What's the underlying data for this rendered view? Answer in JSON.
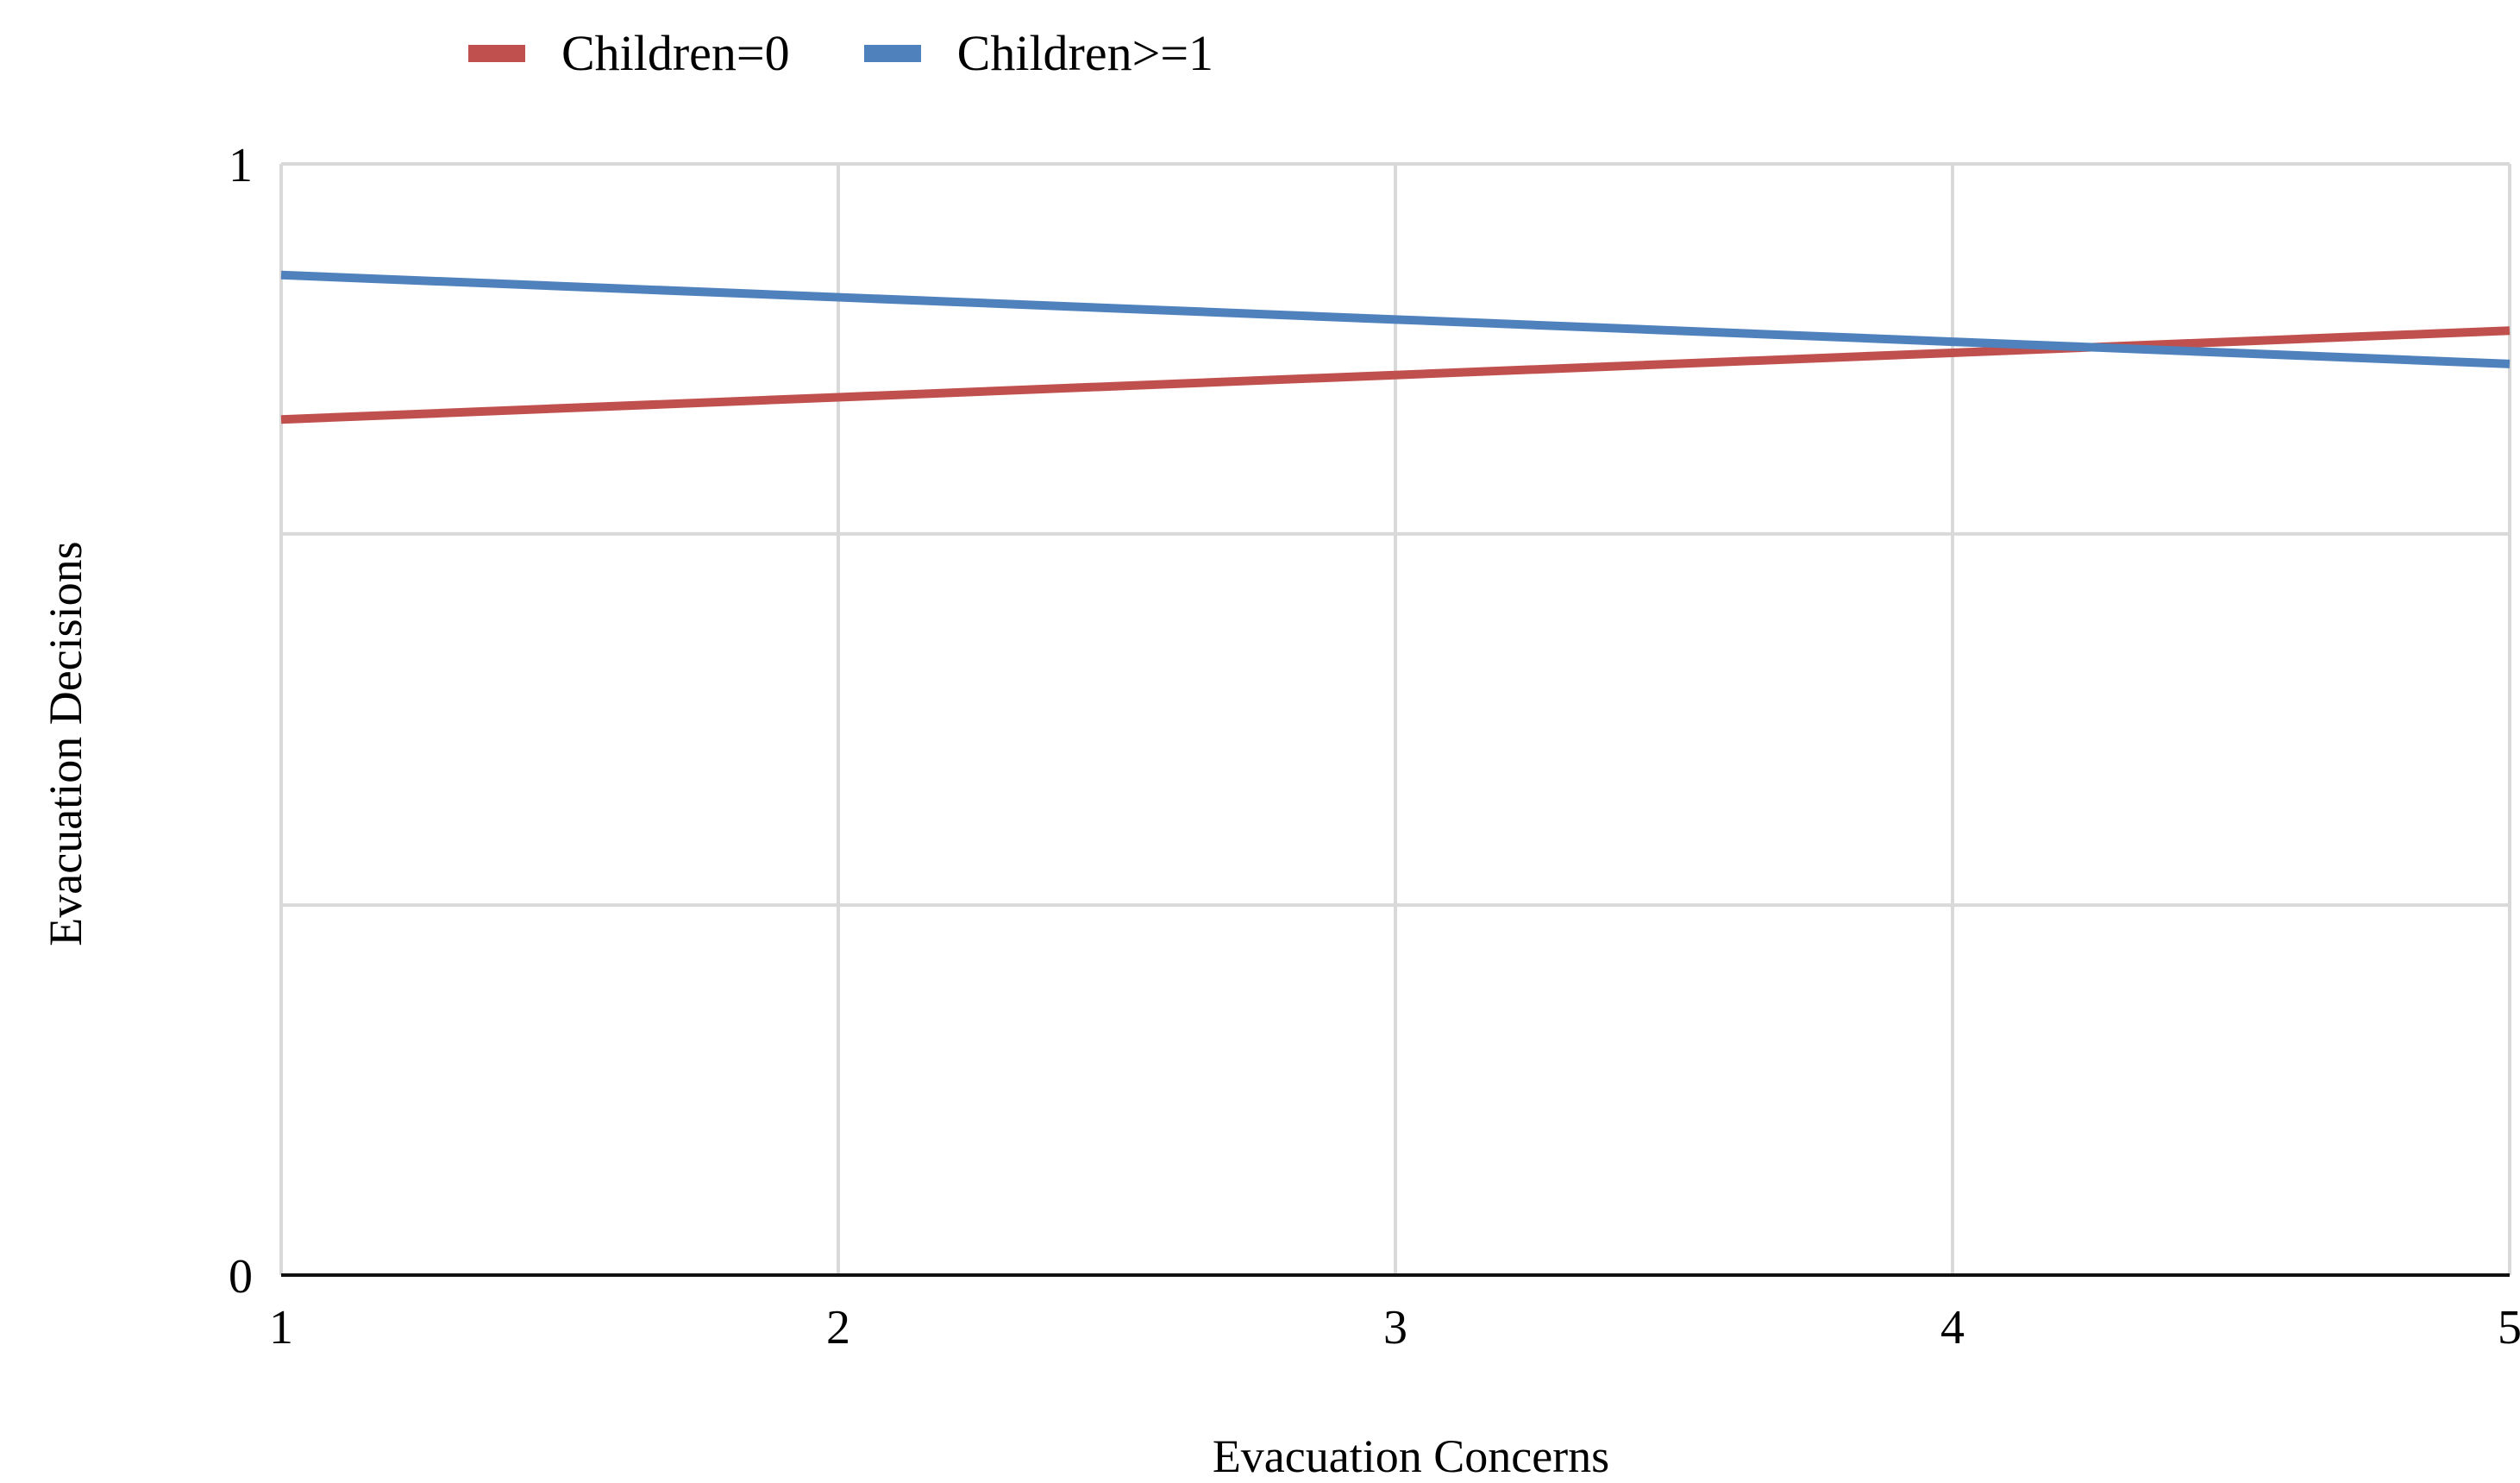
{
  "colors": {
    "children_zero": "#c0504d",
    "children_one_plus": "#4f81bd",
    "grid": "#d9d9d9",
    "axis": "#111111"
  },
  "legend": {
    "items": [
      {
        "label": "Children=0",
        "color": "#c0504d"
      },
      {
        "label": "Children>=1",
        "color": "#4f81bd"
      }
    ]
  },
  "chart_data": {
    "type": "line",
    "title": "",
    "xlabel": "Evacuation Concerns",
    "ylabel": "Evacuation Decisions",
    "xlim": [
      1,
      5
    ],
    "ylim": [
      0,
      1
    ],
    "x_ticks": [
      1,
      2,
      3,
      4,
      5
    ],
    "x_tick_labels": [
      "1",
      "2",
      "3",
      "4",
      "5"
    ],
    "y_ticks": [
      0,
      1
    ],
    "y_tick_labels": [
      "0",
      "1"
    ],
    "y_gridlines": [
      0.333,
      0.667
    ],
    "grid": true,
    "legend_position": "top-center",
    "series": [
      {
        "name": "Children=0",
        "color": "#c0504d",
        "x": [
          1,
          2,
          3,
          4,
          5
        ],
        "values": [
          0.77,
          0.79,
          0.81,
          0.83,
          0.85
        ]
      },
      {
        "name": "Children>=1",
        "color": "#4f81bd",
        "x": [
          1,
          2,
          3,
          4,
          5
        ],
        "values": [
          0.9,
          0.88,
          0.86,
          0.84,
          0.82
        ]
      }
    ]
  }
}
